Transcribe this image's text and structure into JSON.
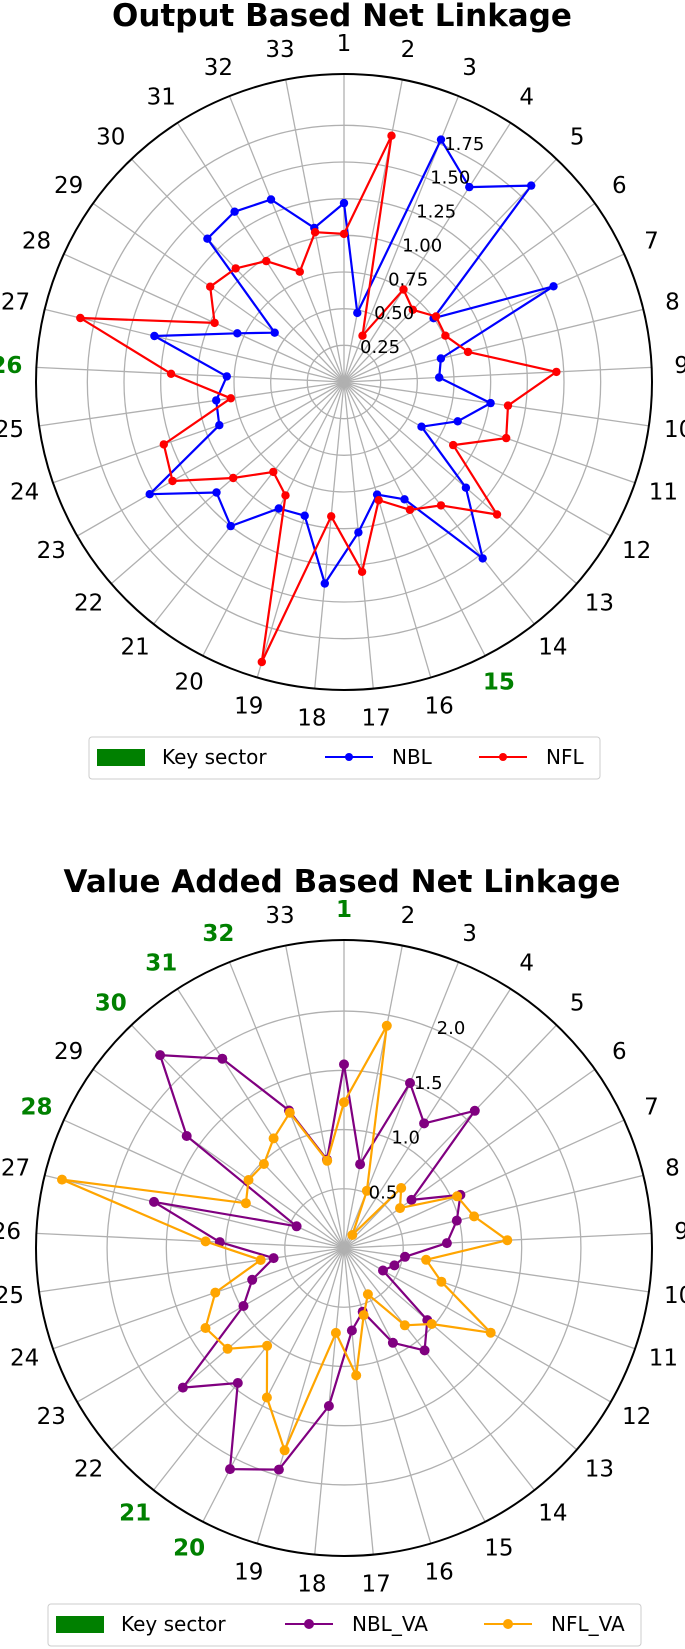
{
  "chart_data": [
    {
      "type": "radar",
      "title": "Output Based Net Linkage",
      "categories": [
        "1",
        "2",
        "3",
        "4",
        "5",
        "6",
        "7",
        "8",
        "9",
        "10",
        "11",
        "12",
        "13",
        "14",
        "15",
        "16",
        "17",
        "18",
        "19",
        "20",
        "21",
        "22",
        "23",
        "24",
        "25",
        "26",
        "27",
        "28",
        "29",
        "30",
        "31",
        "32",
        "33"
      ],
      "key_sectors": [
        "15",
        "26"
      ],
      "radial_ticks": [
        "0.25",
        "0.50",
        "0.75",
        "1.00",
        "1.25",
        "1.50",
        "1.75"
      ],
      "rlim": [
        0,
        2.1
      ],
      "grid": true,
      "legend": {
        "position": "bottom",
        "entries": [
          "Key sector",
          "NBL",
          "NFL"
        ]
      },
      "series": [
        {
          "name": "NBL",
          "color": "#0000ff",
          "values": [
            1.22,
            0.48,
            1.78,
            1.58,
            1.85,
            0.75,
            1.57,
            0.68,
            0.65,
            1.01,
            0.82,
            0.61,
            1.1,
            1.53,
            0.9,
            0.8,
            1.03,
            1.38,
            0.95,
            0.97,
            1.25,
            1.15,
            1.53,
            0.9,
            0.88,
            0.8,
            1.33,
            0.8,
            0.58,
            1.35,
            1.38,
            1.34,
            1.07
          ]
        },
        {
          "name": "NFL",
          "color": "#ff0000",
          "values": [
            1.01,
            1.71,
            0.34,
            0.75,
            0.68,
            0.77,
            0.76,
            0.87,
            1.45,
            1.13,
            1.17,
            0.86,
            1.38,
            1.07,
            0.98,
            0.84,
            1.3,
            0.92,
            1.99,
            0.87,
            0.78,
            1.0,
            1.35,
            1.3,
            0.78,
            1.18,
            1.85,
            0.97,
            1.12,
            1.07,
            0.98,
            0.81,
            1.04
          ]
        }
      ]
    },
    {
      "type": "radar",
      "title": "Value Added Based Net Linkage",
      "categories": [
        "1",
        "2",
        "3",
        "4",
        "5",
        "6",
        "7",
        "8",
        "9",
        "10",
        "11",
        "12",
        "13",
        "14",
        "15",
        "16",
        "17",
        "18",
        "19",
        "20",
        "21",
        "22",
        "23",
        "24",
        "25",
        "26",
        "27",
        "28",
        "29",
        "30",
        "31",
        "32",
        "33"
      ],
      "key_sectors": [
        "1",
        "20",
        "21",
        "28",
        "30",
        "31",
        "32"
      ],
      "radial_ticks": [
        "0.5",
        "1.0",
        "1.5",
        "2.0"
      ],
      "rlim": [
        0,
        2.6
      ],
      "grid": true,
      "legend": {
        "position": "bottom",
        "entries": [
          "Key sector",
          "NBL_VA",
          "NFL_VA"
        ]
      },
      "series": [
        {
          "name": "NBL_VA",
          "color": "#800080",
          "values": [
            1.55,
            0.72,
            1.5,
            1.25,
            1.6,
            0.7,
            1.08,
            0.98,
            0.87,
            0.52,
            0.45,
            0.38,
            0.93,
            1.1,
            0.9,
            0.56,
            0.7,
            1.34,
            1.95,
            2.1,
            1.45,
            1.8,
            0.98,
            0.82,
            0.6,
            1.05,
            1.65,
            0.44,
            1.63,
            2.25,
            1.9,
            1.25,
            0.76
          ]
        },
        {
          "name": "NFL_VA",
          "color": "#ffa500",
          "values": [
            1.23,
            1.91,
            0.52,
            0.13,
            0.7,
            0.58,
            1.05,
            1.13,
            1.38,
            0.7,
            0.87,
            1.43,
            0.98,
            0.83,
            0.44,
            0.59,
            1.08,
            0.72,
            1.78,
            1.42,
            1.05,
            1.3,
            1.35,
            1.15,
            0.71,
            1.17,
            2.45,
            0.91,
            0.99,
            0.98,
            1.1,
            1.23,
            0.75
          ]
        }
      ]
    }
  ],
  "legend_key_color": "#008000"
}
